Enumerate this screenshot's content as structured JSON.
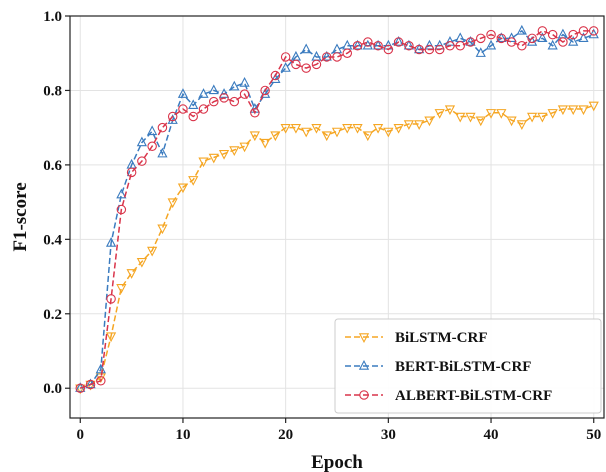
{
  "chart_data": {
    "type": "line",
    "xlabel": "Epoch",
    "ylabel": "F1-score",
    "xlim": [
      -1,
      51
    ],
    "ylim": [
      -0.08,
      1.0
    ],
    "x_ticks": [
      0,
      10,
      20,
      30,
      40,
      50
    ],
    "y_ticks": [
      0.0,
      0.2,
      0.4,
      0.6,
      0.8,
      1.0
    ],
    "x_tick_labels": [
      "0",
      "10",
      "20",
      "30",
      "40",
      "50"
    ],
    "y_tick_labels": [
      "0.0",
      "0.2",
      "0.4",
      "0.6",
      "0.8",
      "1.0"
    ],
    "grid": true,
    "legend_position": "bottom-right",
    "x": [
      0,
      1,
      2,
      3,
      4,
      5,
      6,
      7,
      8,
      9,
      10,
      11,
      12,
      13,
      14,
      15,
      16,
      17,
      18,
      19,
      20,
      21,
      22,
      23,
      24,
      25,
      26,
      27,
      28,
      29,
      30,
      31,
      32,
      33,
      34,
      35,
      36,
      37,
      38,
      39,
      40,
      41,
      42,
      43,
      44,
      45,
      46,
      47,
      48,
      49,
      50
    ],
    "series": [
      {
        "name": "BiLSTM-CRF",
        "color": "#f5a623",
        "marker": "triangle-down",
        "values": [
          0.0,
          0.01,
          0.03,
          0.14,
          0.27,
          0.31,
          0.34,
          0.37,
          0.43,
          0.5,
          0.54,
          0.56,
          0.61,
          0.62,
          0.63,
          0.64,
          0.65,
          0.68,
          0.66,
          0.68,
          0.7,
          0.7,
          0.69,
          0.7,
          0.68,
          0.69,
          0.7,
          0.7,
          0.68,
          0.7,
          0.69,
          0.7,
          0.71,
          0.71,
          0.72,
          0.74,
          0.75,
          0.73,
          0.73,
          0.72,
          0.74,
          0.74,
          0.72,
          0.71,
          0.73,
          0.73,
          0.74,
          0.75,
          0.75,
          0.75,
          0.76
        ]
      },
      {
        "name": "BERT-BiLSTM-CRF",
        "color": "#3a7bbf",
        "marker": "triangle-up",
        "values": [
          0.0,
          0.01,
          0.05,
          0.39,
          0.52,
          0.6,
          0.66,
          0.69,
          0.63,
          0.72,
          0.79,
          0.76,
          0.79,
          0.8,
          0.79,
          0.81,
          0.82,
          0.75,
          0.79,
          0.83,
          0.86,
          0.89,
          0.91,
          0.89,
          0.89,
          0.91,
          0.92,
          0.92,
          0.92,
          0.92,
          0.92,
          0.93,
          0.92,
          0.91,
          0.92,
          0.92,
          0.93,
          0.94,
          0.93,
          0.9,
          0.92,
          0.94,
          0.94,
          0.96,
          0.93,
          0.94,
          0.92,
          0.95,
          0.93,
          0.94,
          0.95
        ]
      },
      {
        "name": "ALBERT-BiLSTM-CRF",
        "color": "#d9344a",
        "marker": "circle",
        "values": [
          0.0,
          0.01,
          0.02,
          0.24,
          0.48,
          0.58,
          0.61,
          0.65,
          0.7,
          0.73,
          0.75,
          0.73,
          0.75,
          0.77,
          0.78,
          0.77,
          0.79,
          0.74,
          0.8,
          0.84,
          0.89,
          0.87,
          0.86,
          0.87,
          0.89,
          0.89,
          0.9,
          0.92,
          0.93,
          0.92,
          0.91,
          0.93,
          0.92,
          0.91,
          0.91,
          0.91,
          0.92,
          0.92,
          0.93,
          0.94,
          0.95,
          0.94,
          0.93,
          0.92,
          0.94,
          0.96,
          0.95,
          0.93,
          0.95,
          0.96,
          0.96
        ]
      }
    ]
  }
}
